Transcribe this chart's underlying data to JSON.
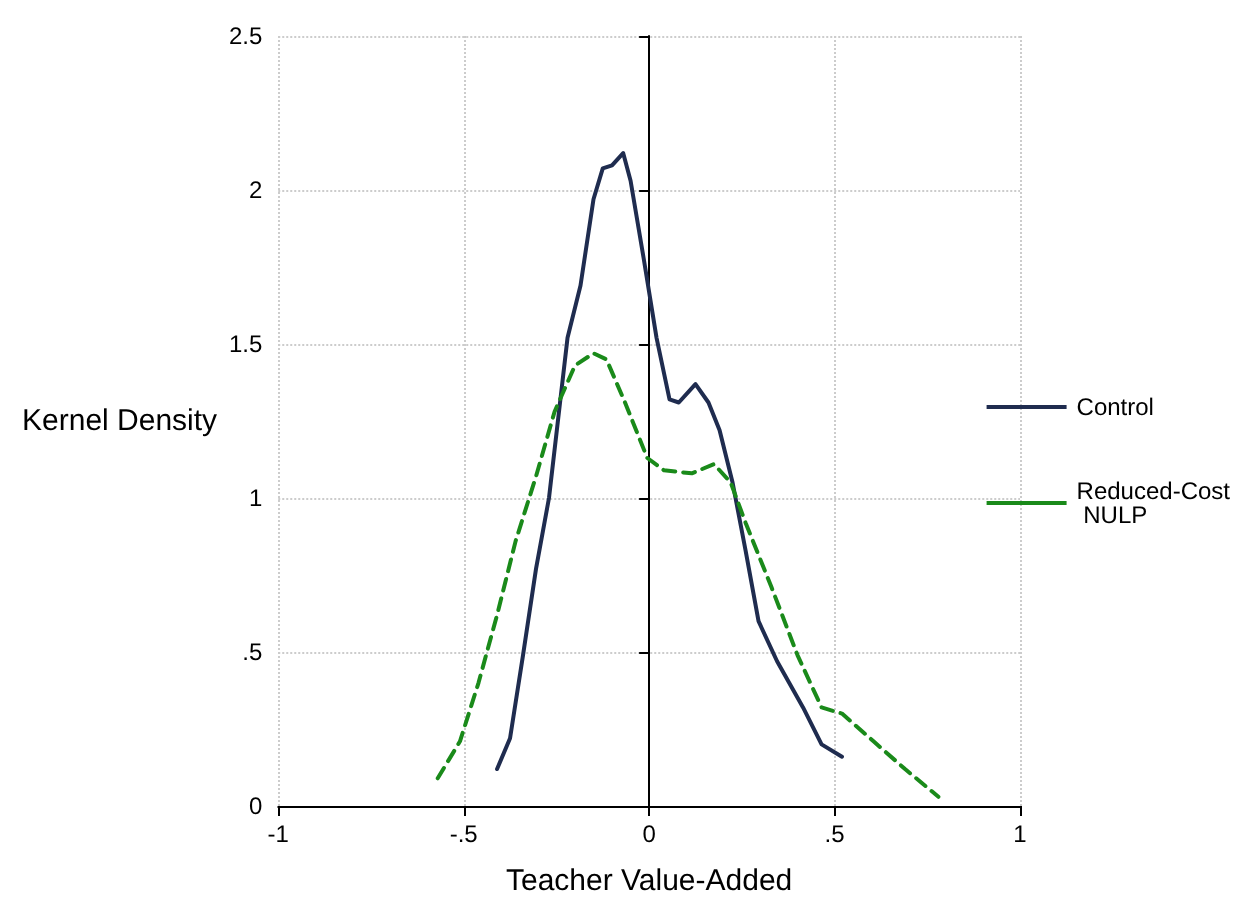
{
  "chart_data": {
    "type": "line",
    "xlabel": "Teacher Value-Added",
    "ylabel": "Kernel Density",
    "xlim": [
      -1,
      1
    ],
    "xticks": [
      {
        "value": -1,
        "label": "-1"
      },
      {
        "value": -0.5,
        "label": "-.5"
      },
      {
        "value": 0,
        "label": "0"
      },
      {
        "value": 0.5,
        "label": ".5"
      },
      {
        "value": 1,
        "label": "1"
      }
    ],
    "ylim": [
      0,
      2.5
    ],
    "yticks": [
      0,
      {
        "value": 0.5,
        "label": ".5"
      },
      1,
      1.5,
      2,
      2.5
    ],
    "grid": true,
    "legend": "right",
    "marker": "none",
    "series": [
      {
        "name": "Control",
        "color": "#1f2c4f",
        "line_style": "solid",
        "x": [
          -0.41,
          -0.375,
          -0.34,
          -0.305,
          -0.27,
          -0.22,
          -0.185,
          -0.15,
          -0.125,
          -0.1,
          -0.07,
          -0.05,
          -0.015,
          0.02,
          0.055,
          0.08,
          0.125,
          0.16,
          0.19,
          0.225,
          0.26,
          0.295,
          0.345,
          0.415,
          0.465,
          0.52
        ],
        "values": [
          0.12,
          0.22,
          0.49,
          0.77,
          1.0,
          1.52,
          1.69,
          1.97,
          2.07,
          2.08,
          2.12,
          2.03,
          1.78,
          1.52,
          1.32,
          1.31,
          1.37,
          1.31,
          1.22,
          1.05,
          0.83,
          0.6,
          0.47,
          0.32,
          0.2,
          0.16
        ]
      },
      {
        "name": "Reduced-Cost NULP",
        "color": "#1a8a1a",
        "line_style": "dashed",
        "x": [
          -0.57,
          -0.51,
          -0.46,
          -0.41,
          -0.36,
          -0.305,
          -0.255,
          -0.2,
          -0.15,
          -0.115,
          -0.065,
          -0.005,
          0.04,
          0.115,
          0.175,
          0.22,
          0.26,
          0.33,
          0.4,
          0.465,
          0.52,
          0.605,
          0.69,
          0.78
        ],
        "values": [
          0.09,
          0.21,
          0.4,
          0.62,
          0.86,
          1.07,
          1.28,
          1.43,
          1.47,
          1.45,
          1.31,
          1.13,
          1.09,
          1.08,
          1.11,
          1.05,
          0.92,
          0.71,
          0.49,
          0.32,
          0.3,
          0.21,
          0.12,
          0.03
        ]
      }
    ]
  }
}
